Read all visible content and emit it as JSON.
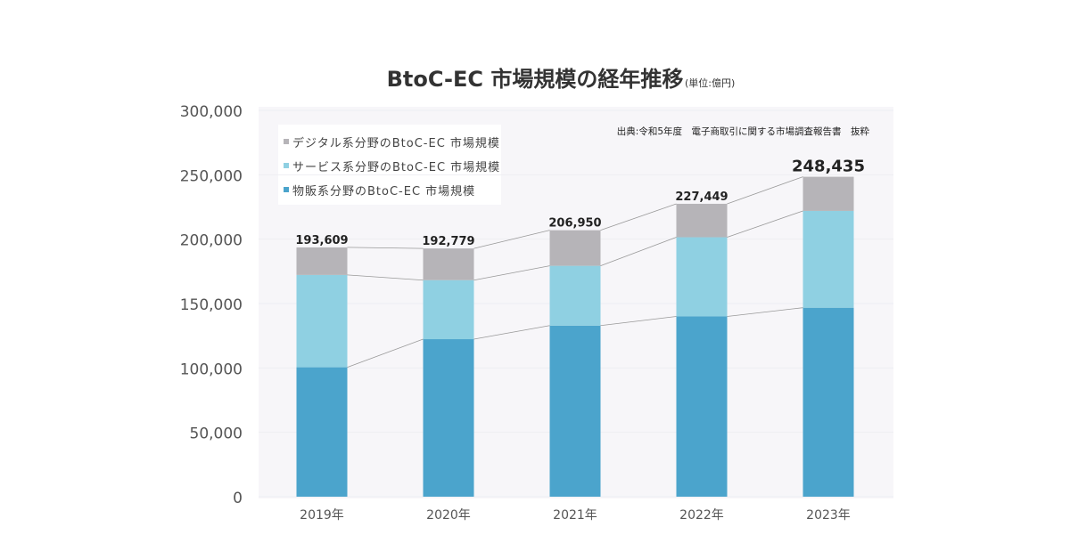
{
  "chart_data": {
    "type": "bar",
    "stacked": true,
    "title": "BtoC-EC 市場規模の経年推移",
    "unit": "(単位:億円)",
    "source": "出典:令和5年度　電子商取引に関する市場調査報告書　抜粋",
    "categories": [
      "2019年",
      "2020年",
      "2021年",
      "2022年",
      "2023年"
    ],
    "series": [
      {
        "name": "物販系分野のBtoC-EC 市場規模",
        "color": "#4ba4cc",
        "values": [
          100515,
          122333,
          132865,
          139997,
          146760
        ]
      },
      {
        "name": "サービス系分野のBtoC-EC 市場規模",
        "color": "#8fd0e2",
        "values": [
          71672,
          45832,
          46424,
          61477,
          75169
        ]
      },
      {
        "name": "デジタル系分野のBtoC-EC 市場規模",
        "color": "#b6b4b8",
        "values": [
          21422,
          24614,
          27661,
          25974,
          26506
        ]
      }
    ],
    "totals": [
      "193,609",
      "192,779",
      "206,950",
      "227,449",
      "248,435"
    ],
    "ylim": [
      0,
      300000
    ],
    "yticks": [
      "0",
      "50,000",
      "100,000",
      "150,000",
      "200,000",
      "250,000",
      "300,000"
    ],
    "legend_order": [
      "デジタル系分野のBtoC-EC 市場規模",
      "サービス系分野のBtoC-EC 市場規模",
      "物販系分野のBtoC-EC 市場規模"
    ],
    "legend": "top-left"
  }
}
